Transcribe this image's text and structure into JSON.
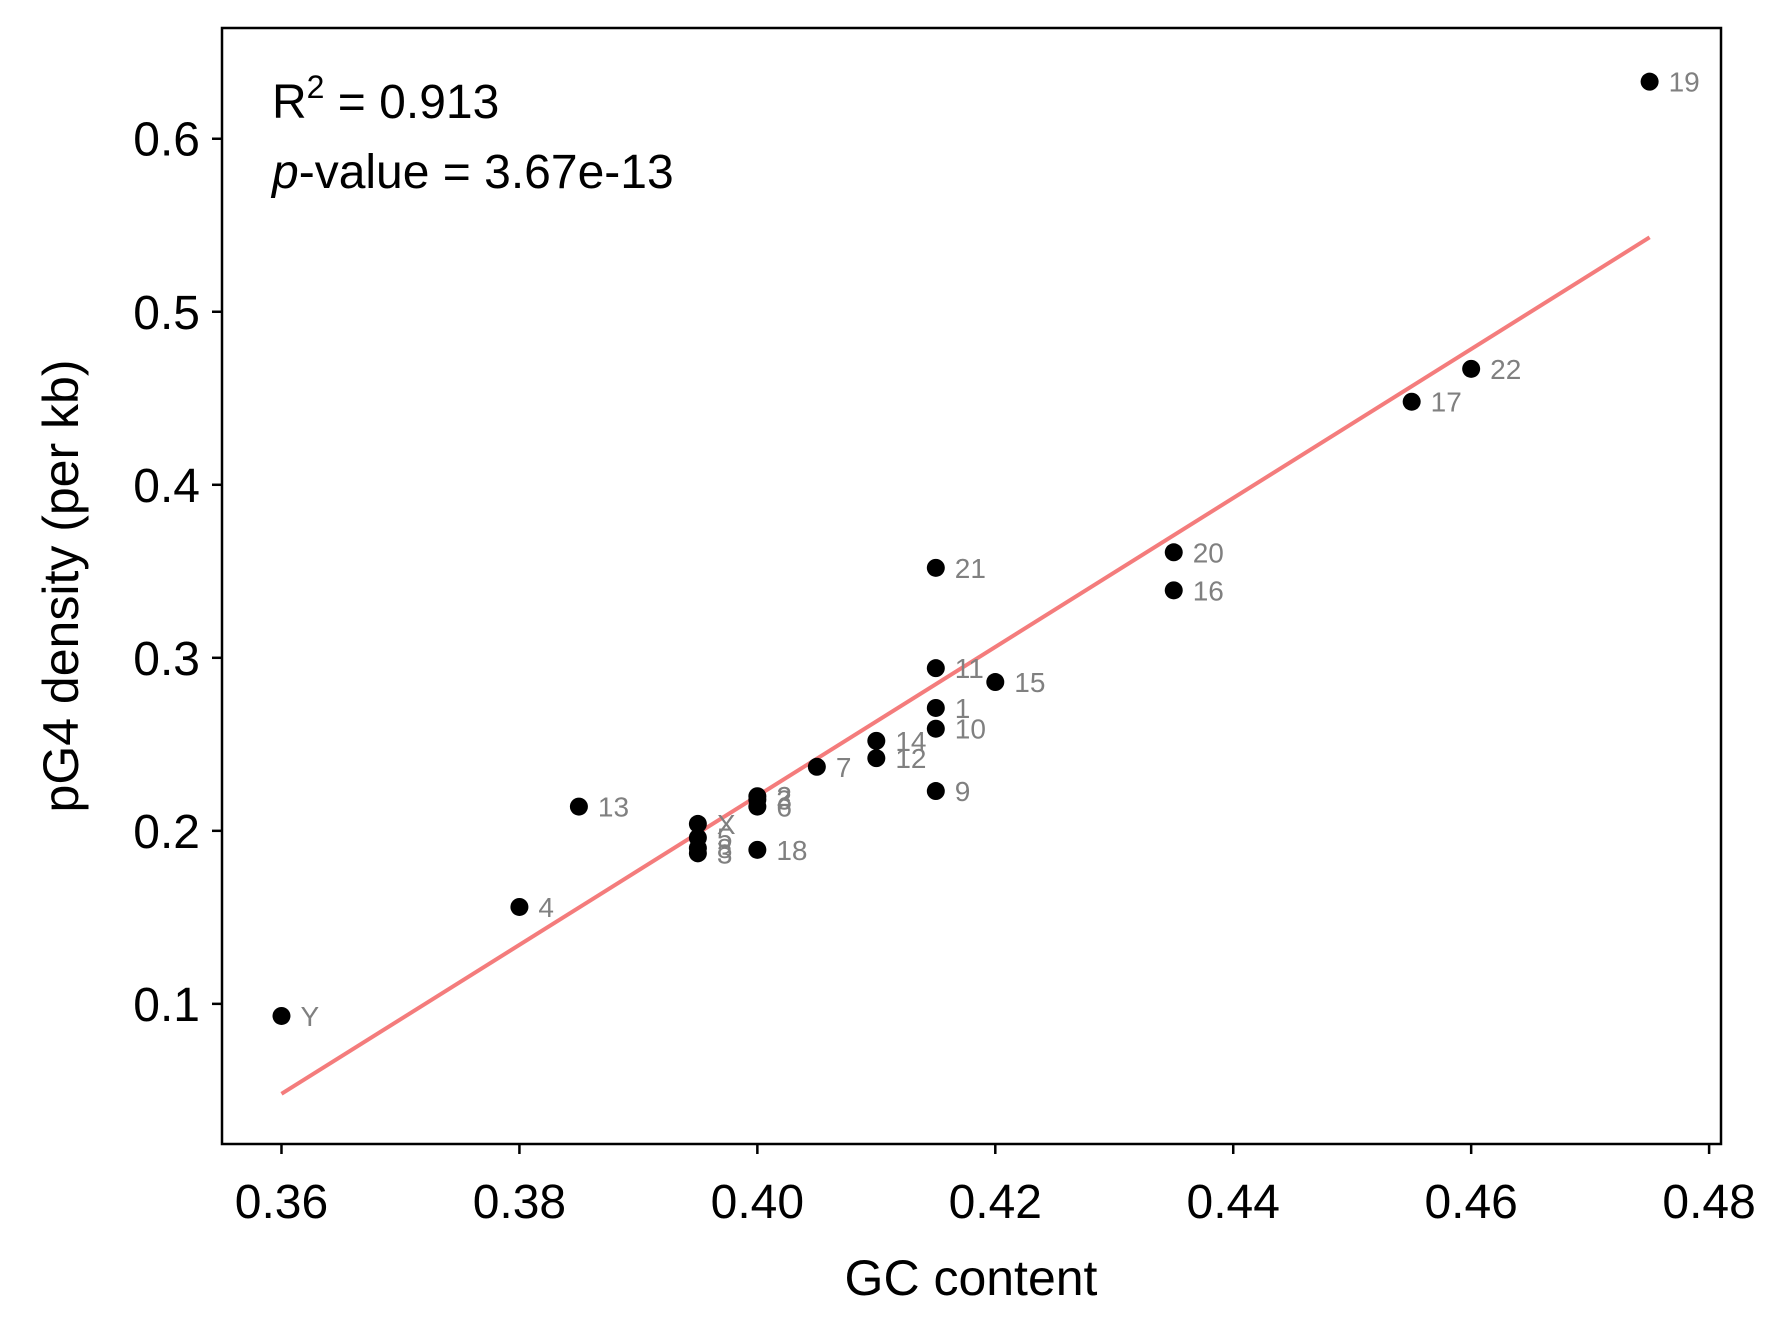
{
  "chart_data": {
    "type": "scatter",
    "xlabel": "GC content",
    "ylabel": "pG4 density (per kb)",
    "xlim": [
      0.355,
      0.481
    ],
    "ylim": [
      0.019,
      0.664
    ],
    "x_ticks": [
      "0.36",
      "0.38",
      "0.40",
      "0.42",
      "0.44",
      "0.46",
      "0.48"
    ],
    "y_ticks": [
      "0.1",
      "0.2",
      "0.3",
      "0.4",
      "0.5",
      "0.6"
    ],
    "grid": false,
    "annotation": {
      "r2_prefix": "R",
      "r2_sup": "2",
      "r2_value": " = 0.913",
      "p_italic": "p",
      "p_value": "-value = 3.67e-13"
    },
    "fit_line": {
      "x": [
        0.36,
        0.475
      ],
      "y": [
        0.048,
        0.543
      ],
      "color": "#f47c7c"
    },
    "point_color": "#000000",
    "label_color": "#808080",
    "points": [
      {
        "label": "19",
        "x": 0.475,
        "y": 0.633
      },
      {
        "label": "22",
        "x": 0.46,
        "y": 0.467
      },
      {
        "label": "17",
        "x": 0.455,
        "y": 0.448
      },
      {
        "label": "20",
        "x": 0.435,
        "y": 0.361
      },
      {
        "label": "16",
        "x": 0.435,
        "y": 0.339
      },
      {
        "label": "21",
        "x": 0.415,
        "y": 0.352
      },
      {
        "label": "11",
        "x": 0.415,
        "y": 0.294
      },
      {
        "label": "15",
        "x": 0.42,
        "y": 0.286
      },
      {
        "label": "1",
        "x": 0.415,
        "y": 0.271
      },
      {
        "label": "10",
        "x": 0.415,
        "y": 0.259
      },
      {
        "label": "14",
        "x": 0.41,
        "y": 0.252
      },
      {
        "label": "12",
        "x": 0.41,
        "y": 0.242
      },
      {
        "label": "7",
        "x": 0.405,
        "y": 0.237
      },
      {
        "label": "9",
        "x": 0.415,
        "y": 0.223
      },
      {
        "label": "2",
        "x": 0.4,
        "y": 0.22
      },
      {
        "label": "3",
        "x": 0.4,
        "y": 0.218
      },
      {
        "label": "6",
        "x": 0.4,
        "y": 0.214
      },
      {
        "label": "13",
        "x": 0.385,
        "y": 0.214
      },
      {
        "label": "X",
        "x": 0.395,
        "y": 0.204
      },
      {
        "label": "5",
        "x": 0.395,
        "y": 0.196
      },
      {
        "label": "8",
        "x": 0.395,
        "y": 0.19
      },
      {
        "label": "3",
        "x": 0.395,
        "y": 0.187
      },
      {
        "label": "18",
        "x": 0.4,
        "y": 0.189
      },
      {
        "label": "4",
        "x": 0.38,
        "y": 0.156
      },
      {
        "label": "Y",
        "x": 0.36,
        "y": 0.093
      }
    ]
  }
}
